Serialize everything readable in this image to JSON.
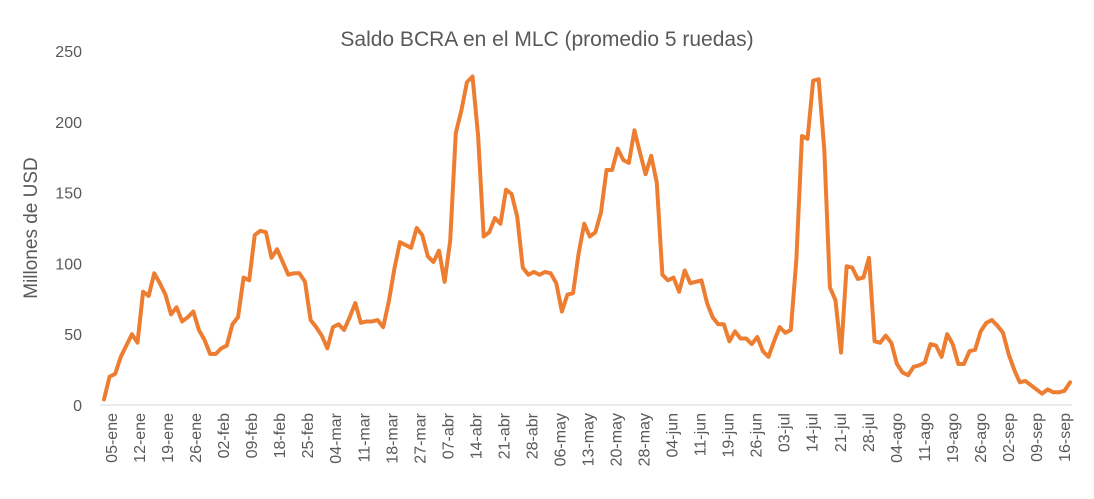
{
  "chart_data": {
    "type": "line",
    "title": "Saldo BCRA en el MLC (promedio 5 ruedas)",
    "xlabel": "",
    "ylabel": "Millones de USD",
    "ylim": [
      0,
      250
    ],
    "yticks": [
      "0",
      "50",
      "100",
      "150",
      "200",
      "250"
    ],
    "grid": false,
    "legend": "none",
    "line_color": "#ED7D31",
    "xticks": [
      "05-ene",
      "12-ene",
      "19-ene",
      "26-ene",
      "02-feb",
      "09-feb",
      "18-feb",
      "25-feb",
      "04-mar",
      "11-mar",
      "18-mar",
      "27-mar",
      "07-abr",
      "14-abr",
      "21-abr",
      "28-abr",
      "06-may",
      "13-may",
      "20-may",
      "28-may",
      "04-jun",
      "11-jun",
      "19-jun",
      "26-jun",
      "03-jul",
      "14-jul",
      "21-jul",
      "28-jul",
      "04-ago",
      "11-ago",
      "19-ago",
      "26-ago",
      "02-sep",
      "09-sep",
      "16-sep"
    ],
    "series": [
      {
        "values": [
          4,
          20,
          22,
          34,
          42,
          50,
          44,
          80,
          77,
          93,
          86,
          78,
          64,
          69,
          59,
          62,
          66,
          53,
          46,
          36,
          36,
          40,
          42,
          57,
          62,
          90,
          88,
          120,
          123,
          122,
          104,
          110,
          101,
          92,
          93,
          93,
          87,
          60,
          55,
          49,
          40,
          55,
          57,
          53,
          62,
          72,
          58,
          59,
          59,
          60,
          55,
          73,
          96,
          115,
          113,
          111,
          125,
          120,
          105,
          101,
          109,
          87,
          116,
          192,
          208,
          228,
          232,
          190,
          119,
          122,
          132,
          128,
          152,
          149,
          133,
          97,
          92,
          94,
          92,
          94,
          93,
          86,
          66,
          78,
          79,
          107,
          128,
          119,
          122,
          136,
          166,
          166,
          181,
          173,
          171,
          194,
          178,
          163,
          176,
          157,
          92,
          88,
          90,
          80,
          95,
          86,
          87,
          88,
          72,
          62,
          57,
          57,
          45,
          52,
          47,
          47,
          43,
          48,
          38,
          34,
          45,
          55,
          51,
          53,
          103,
          190,
          188,
          229,
          230,
          180,
          83,
          74,
          37,
          98,
          97,
          89,
          90,
          104,
          45,
          44,
          49,
          44,
          29,
          23,
          21,
          27,
          28,
          30,
          43,
          42,
          34,
          50,
          43,
          29,
          29,
          38,
          39,
          52,
          58,
          60,
          56,
          51,
          36,
          25,
          16,
          17,
          14,
          11,
          8,
          11,
          9,
          9,
          10,
          16
        ]
      }
    ]
  }
}
